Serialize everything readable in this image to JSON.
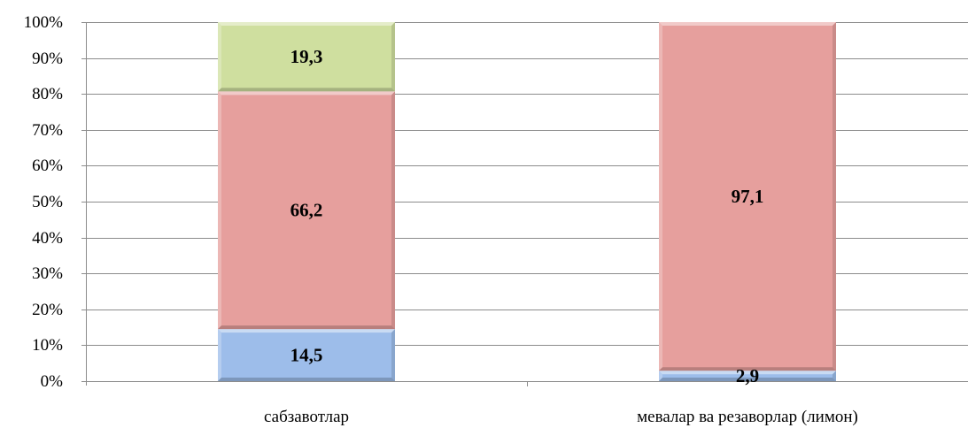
{
  "chart_data": {
    "type": "bar",
    "stacked": true,
    "normalized": true,
    "categories": [
      "сабзавотлар",
      "мевалар ва резаворлар (лимон)"
    ],
    "series": [
      {
        "values": [
          14.5,
          2.9
        ],
        "labels": [
          "14,5",
          "2,9"
        ],
        "color": "#9dbdea"
      },
      {
        "values": [
          66.2,
          97.1
        ],
        "labels": [
          "66,2",
          "97,1"
        ],
        "color": "#e69f9d"
      },
      {
        "values": [
          19.3,
          0
        ],
        "labels": [
          "19,3",
          ""
        ],
        "color": "#cfdf9f"
      }
    ],
    "y_ticks": [
      "0%",
      "10%",
      "20%",
      "30%",
      "40%",
      "50%",
      "60%",
      "70%",
      "80%",
      "90%",
      "100%"
    ],
    "ylim": [
      0,
      100
    ],
    "grid": true,
    "legend": "none"
  }
}
